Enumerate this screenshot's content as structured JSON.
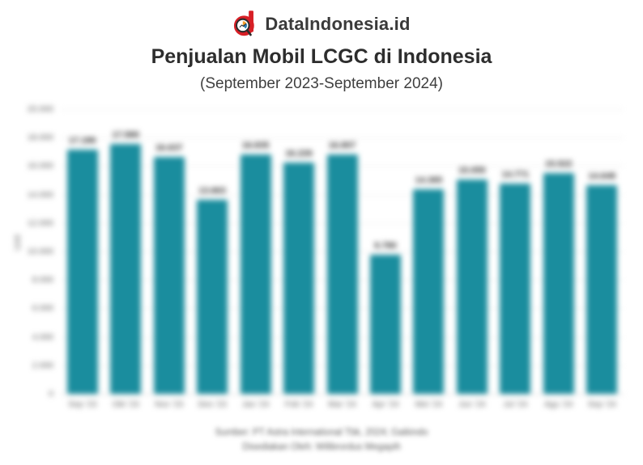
{
  "brand": {
    "name": "DataIndonesia.id",
    "logo_icon": "data-indonesia-magnifier-d-logo",
    "logo_red": "#d71f26",
    "logo_dark": "#2b2b2b"
  },
  "header": {
    "title": "Penjualan Mobil LCGC di Indonesia",
    "subtitle": "(September 2023-September 2024)"
  },
  "chart_data": {
    "type": "bar",
    "title": "Penjualan Mobil LCGC di Indonesia",
    "subtitle": "(September 2023-September 2024)",
    "categories": [
      "Sep '23",
      "Okt '23",
      "Nov '23",
      "Des '23",
      "Jan '24",
      "Feb '24",
      "Mar '24",
      "Apr '24",
      "Mei '24",
      "Jun '24",
      "Jul '24",
      "Agu '24",
      "Sep '24"
    ],
    "values": [
      17186,
      17580,
      16637,
      13663,
      16835,
      16226,
      16807,
      9780,
      14365,
      15055,
      14771,
      15522,
      14648
    ],
    "value_labels": [
      "17.186",
      "17.580",
      "16.637",
      "13.663",
      "16.835",
      "16.226",
      "16.807",
      "9.780",
      "14.365",
      "15.055",
      "14.771",
      "15.522",
      "14.648"
    ],
    "xlabel": "",
    "ylabel": "Unit",
    "ylim": [
      0,
      20000
    ],
    "ytick_step": 2000,
    "ytick_labels": [
      "0",
      "2.000",
      "4.000",
      "6.000",
      "8.000",
      "10.000",
      "12.000",
      "14.000",
      "16.000",
      "18.000",
      "20.000"
    ],
    "bar_color": "#1a8d9e",
    "grid": true,
    "legend": "none",
    "appearance": "chart area and footer are blurred in the screenshot"
  },
  "footer": {
    "line1": "Sumber: PT Astra International Tbk, 2024; Gaikindo",
    "line2": "Disediakan Oleh: Wilibrordus Megapih"
  }
}
